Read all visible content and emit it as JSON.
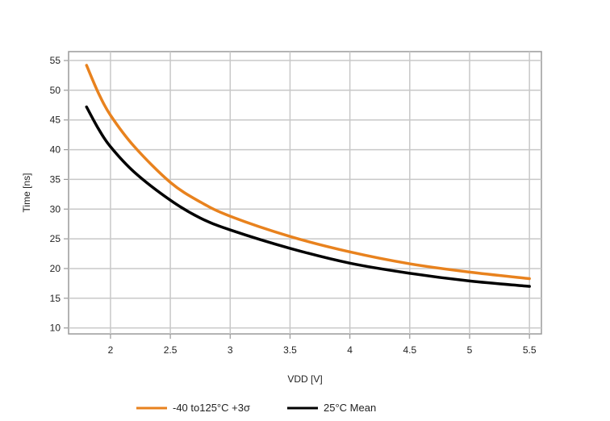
{
  "chart_data": {
    "type": "line",
    "title": "",
    "xlabel": "VDD [V]",
    "ylabel": "Time [ns]",
    "xlim": [
      1.65,
      5.6
    ],
    "ylim": [
      9,
      56.5
    ],
    "xticks": [
      2,
      2.5,
      3,
      3.5,
      4,
      4.5,
      5,
      5.5
    ],
    "xtick_labels": [
      "2",
      "2.5",
      "3",
      "3.5",
      "4",
      "4.5",
      "5",
      "5.5"
    ],
    "yticks": [
      10,
      15,
      20,
      25,
      30,
      35,
      40,
      45,
      50,
      55
    ],
    "ytick_labels": [
      "10",
      "15",
      "20",
      "25",
      "30",
      "35",
      "40",
      "45",
      "50",
      "55"
    ],
    "grid": true,
    "legend_position": "bottom",
    "series": [
      {
        "name": "-40 to125°C +3σ",
        "color": "#e8821e",
        "x": [
          1.8,
          1.9,
          2.0,
          2.2,
          2.5,
          2.75,
          3.0,
          3.5,
          4.0,
          4.5,
          5.0,
          5.5
        ],
        "y": [
          54.2,
          49.5,
          45.8,
          40.5,
          34.5,
          31.2,
          28.8,
          25.4,
          22.8,
          20.8,
          19.4,
          18.3
        ]
      },
      {
        "name": "25°C Mean",
        "color": "#000000",
        "x": [
          1.8,
          1.9,
          2.0,
          2.2,
          2.5,
          2.75,
          3.0,
          3.5,
          4.0,
          4.5,
          5.0,
          5.5
        ],
        "y": [
          47.2,
          43.5,
          40.5,
          36.2,
          31.5,
          28.5,
          26.5,
          23.4,
          20.9,
          19.2,
          17.9,
          17.0
        ]
      }
    ]
  }
}
